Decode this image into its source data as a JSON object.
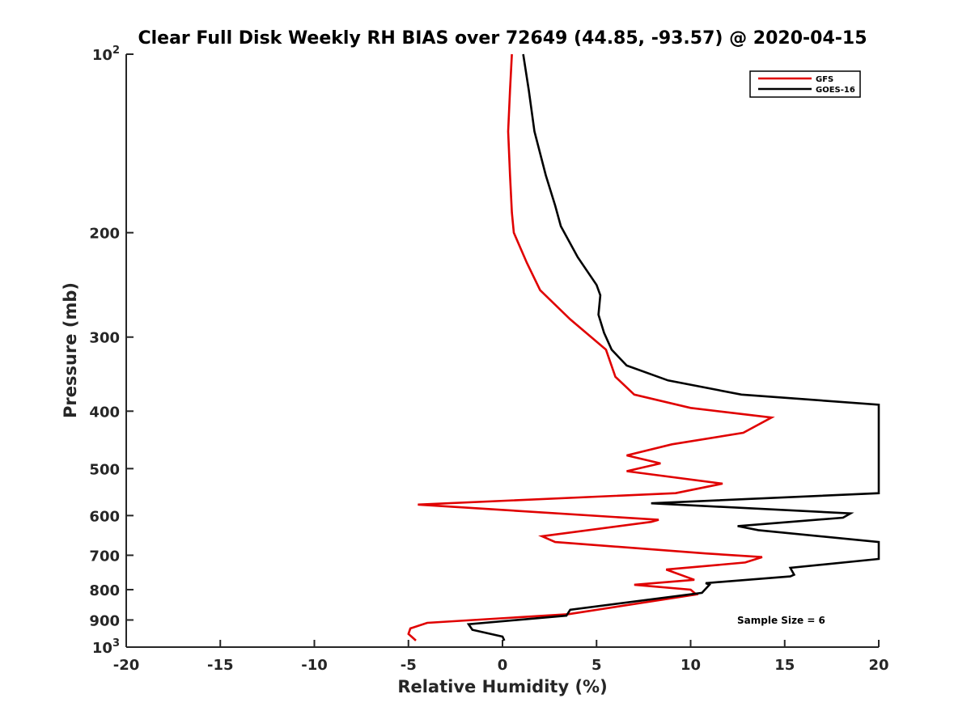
{
  "chart_data": {
    "type": "line",
    "title": "Clear Full Disk Weekly RH BIAS over 72649 (44.85, -93.57) @ 2020-04-15",
    "xlabel": "Relative Humidity (%)",
    "ylabel": "Pressure (mb)",
    "xlim": [
      -20,
      20
    ],
    "ylim": [
      100,
      1000
    ],
    "yscale": "log",
    "y_reversed": true,
    "grid": false,
    "legend_position": "top-right",
    "x_ticks": [
      "-20",
      "-15",
      "-10",
      "-5",
      "0",
      "5",
      "10",
      "15",
      "20"
    ],
    "y_ticks": [
      {
        "value": 100,
        "label": "10",
        "sup": "2"
      },
      {
        "value": 200,
        "label": "200",
        "sup": ""
      },
      {
        "value": 300,
        "label": "300",
        "sup": ""
      },
      {
        "value": 400,
        "label": "400",
        "sup": ""
      },
      {
        "value": 500,
        "label": "500",
        "sup": ""
      },
      {
        "value": 600,
        "label": "600",
        "sup": ""
      },
      {
        "value": 700,
        "label": "700",
        "sup": ""
      },
      {
        "value": 800,
        "label": "800",
        "sup": ""
      },
      {
        "value": 900,
        "label": "900",
        "sup": ""
      },
      {
        "value": 1000,
        "label": "10",
        "sup": "3"
      }
    ],
    "annotation": "Sample Size = 6",
    "series": [
      {
        "name": "GFS",
        "color": "#e00000",
        "points": [
          [
            0.5,
            100
          ],
          [
            0.4,
            115
          ],
          [
            0.3,
            135
          ],
          [
            0.4,
            160
          ],
          [
            0.5,
            185
          ],
          [
            0.6,
            200
          ],
          [
            1.3,
            225
          ],
          [
            2.0,
            250
          ],
          [
            3.6,
            280
          ],
          [
            5.5,
            315
          ],
          [
            6.0,
            350
          ],
          [
            7.0,
            375
          ],
          [
            10.0,
            395
          ],
          [
            14.3,
            410
          ],
          [
            12.8,
            435
          ],
          [
            9.0,
            455
          ],
          [
            6.6,
            475
          ],
          [
            8.4,
            490
          ],
          [
            6.6,
            505
          ],
          [
            11.7,
            530
          ],
          [
            9.2,
            550
          ],
          [
            -4.5,
            575
          ],
          [
            8.3,
            610
          ],
          [
            7.9,
            615
          ],
          [
            2.1,
            650
          ],
          [
            2.8,
            665
          ],
          [
            10.8,
            695
          ],
          [
            13.8,
            705
          ],
          [
            12.9,
            720
          ],
          [
            8.7,
            740
          ],
          [
            10.2,
            770
          ],
          [
            7.0,
            785
          ],
          [
            10.0,
            800
          ],
          [
            10.3,
            815
          ],
          [
            3.5,
            880
          ],
          [
            -4.0,
            910
          ],
          [
            -4.9,
            930
          ],
          [
            -5.0,
            950
          ],
          [
            -4.6,
            975
          ]
        ]
      },
      {
        "name": "GOES-16",
        "color": "#000000",
        "points": [
          [
            1.1,
            100
          ],
          [
            1.4,
            115
          ],
          [
            1.7,
            135
          ],
          [
            2.3,
            160
          ],
          [
            2.8,
            180
          ],
          [
            3.1,
            195
          ],
          [
            4.0,
            220
          ],
          [
            5.0,
            245
          ],
          [
            5.2,
            255
          ],
          [
            5.1,
            275
          ],
          [
            5.4,
            295
          ],
          [
            5.8,
            315
          ],
          [
            6.6,
            335
          ],
          [
            8.8,
            355
          ],
          [
            12.7,
            375
          ],
          [
            20.0,
            390
          ],
          [
            20.0,
            550
          ],
          [
            7.9,
            572
          ],
          [
            18.5,
            595
          ],
          [
            18.1,
            605
          ],
          [
            12.5,
            625
          ],
          [
            13.6,
            635
          ],
          [
            20.0,
            665
          ],
          [
            20.0,
            710
          ],
          [
            15.3,
            735
          ],
          [
            15.5,
            755
          ],
          [
            15.3,
            760
          ],
          [
            10.8,
            780
          ],
          [
            11.0,
            785
          ],
          [
            10.6,
            810
          ],
          [
            3.6,
            865
          ],
          [
            3.4,
            885
          ],
          [
            -1.8,
            915
          ],
          [
            -1.6,
            935
          ],
          [
            0.0,
            960
          ],
          [
            0.1,
            975
          ]
        ]
      }
    ]
  }
}
